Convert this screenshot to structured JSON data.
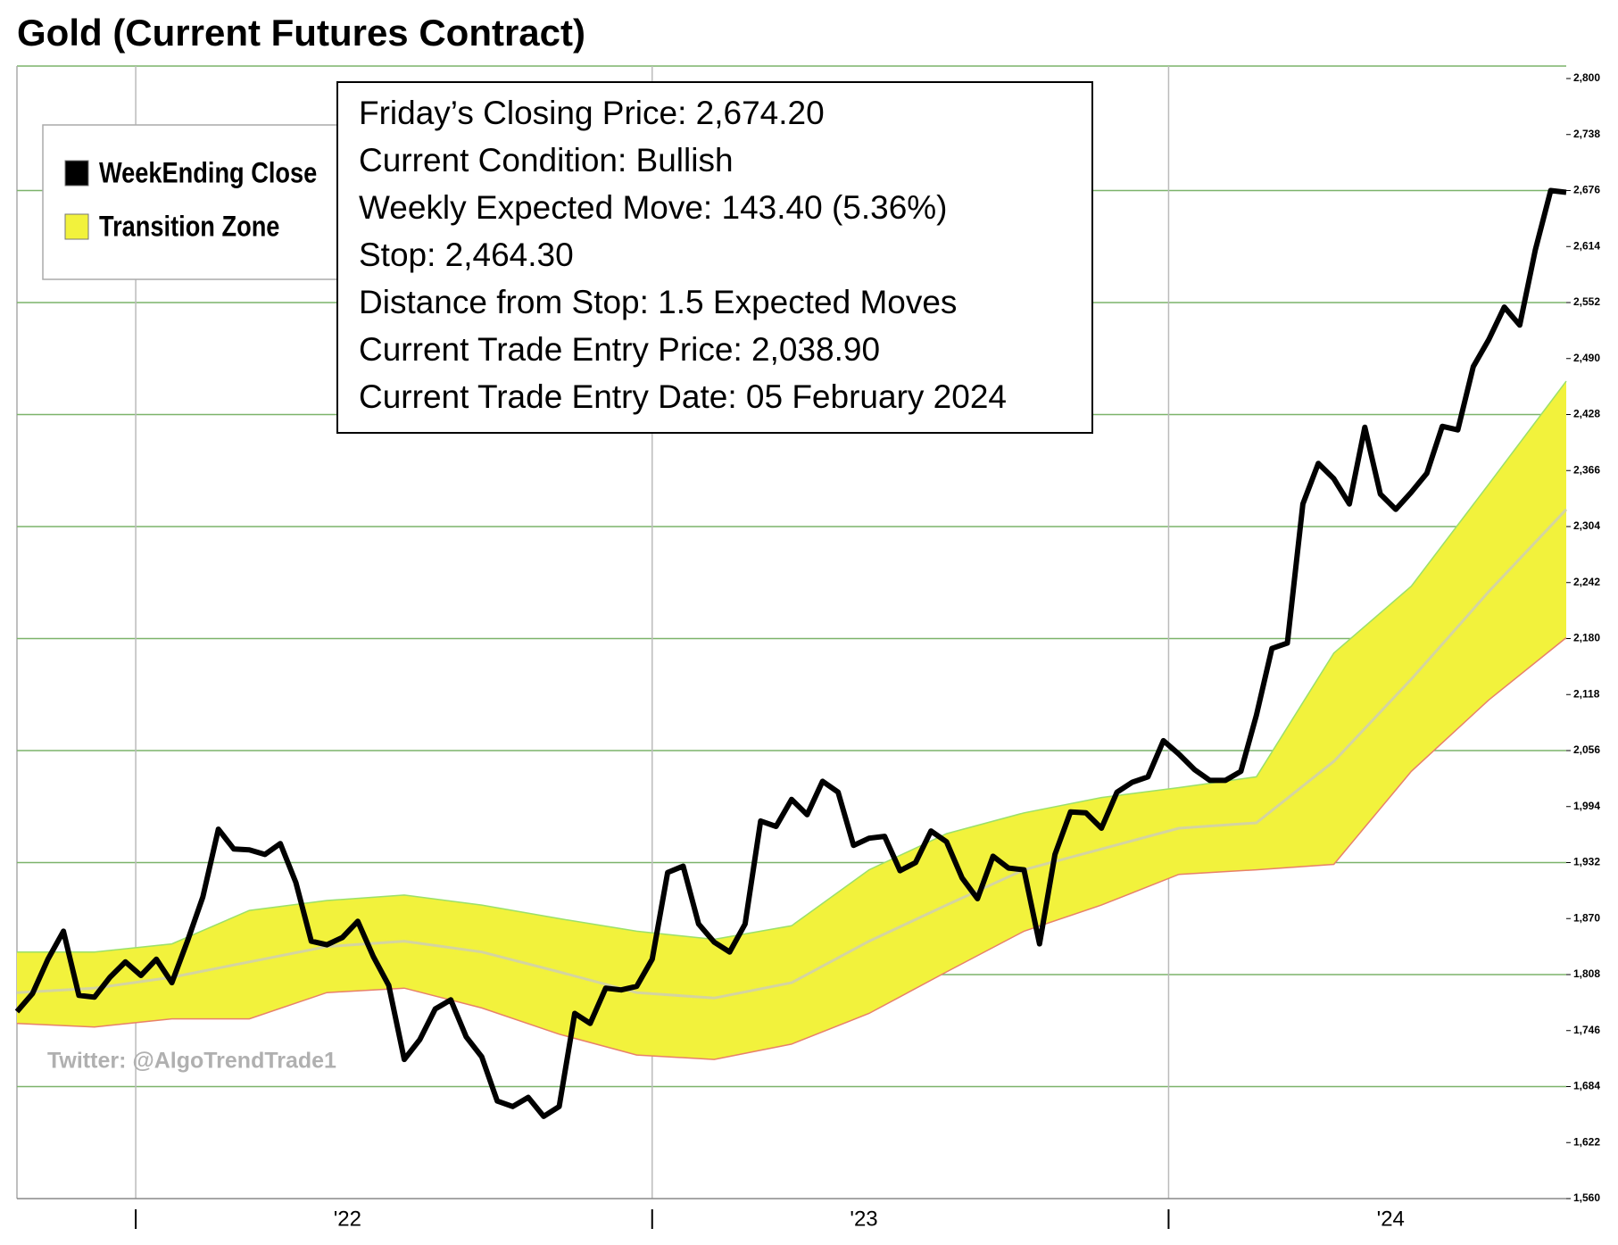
{
  "chart_data": {
    "type": "line",
    "title": "Gold (Current Futures Contract)",
    "annotations": [
      "Friday’s Closing Price: 2,674.20",
      "Current Condition: Bullish",
      "Weekly Expected Move: 143.40 (5.36%)",
      "Stop: 2,464.30",
      "Distance from Stop: 1.5 Expected Moves",
      "Current Trade Entry Price: 2,038.90",
      "Current Trade Entry Date: 05 February 2024"
    ],
    "watermark": "Twitter: @AlgoTrendTrade1",
    "series": [
      {
        "name": "WeekEnding Close",
        "color": "#000000",
        "x": [
          2021.77,
          2021.8,
          2021.83,
          2021.86,
          2021.89,
          2021.92,
          2021.95,
          2021.98,
          2022.01,
          2022.04,
          2022.07,
          2022.1,
          2022.13,
          2022.16,
          2022.19,
          2022.22,
          2022.25,
          2022.28,
          2022.31,
          2022.34,
          2022.37,
          2022.4,
          2022.43,
          2022.46,
          2022.49,
          2022.52,
          2022.55,
          2022.58,
          2022.61,
          2022.64,
          2022.67,
          2022.7,
          2022.73,
          2022.76,
          2022.79,
          2022.82,
          2022.85,
          2022.88,
          2022.91,
          2022.94,
          2022.97,
          2023,
          2023.03,
          2023.06,
          2023.09,
          2023.12,
          2023.15,
          2023.18,
          2023.21,
          2023.24,
          2023.27,
          2023.3,
          2023.33,
          2023.36,
          2023.39,
          2023.42,
          2023.45,
          2023.48,
          2023.51,
          2023.54,
          2023.57,
          2023.6,
          2023.63,
          2023.66,
          2023.69,
          2023.72,
          2023.75,
          2023.78,
          2023.81,
          2023.84,
          2023.87,
          2023.9,
          2023.93,
          2023.96,
          2023.99,
          2024.02,
          2024.05,
          2024.08,
          2024.11,
          2024.14,
          2024.17,
          2024.2,
          2024.23,
          2024.26,
          2024.29,
          2024.32,
          2024.35,
          2024.38,
          2024.41,
          2024.44,
          2024.47,
          2024.5,
          2024.53,
          2024.56,
          2024.59,
          2024.62,
          2024.65,
          2024.68,
          2024.71,
          2024.74,
          2024.77
        ],
        "values": [
          1767,
          1787,
          1825,
          1856,
          1785,
          1783,
          1805,
          1822,
          1807,
          1825,
          1799,
          1845,
          1894,
          1969,
          1947,
          1946,
          1941,
          1953,
          1910,
          1845,
          1841,
          1849,
          1867,
          1828,
          1796,
          1714,
          1736,
          1770,
          1780,
          1739,
          1717,
          1668,
          1662,
          1672,
          1651,
          1662,
          1765,
          1754,
          1793,
          1791,
          1795,
          1825,
          1921,
          1928,
          1864,
          1844,
          1833,
          1864,
          1978,
          1972,
          2002,
          1985,
          2022,
          2010,
          1951,
          1959,
          1961,
          1923,
          1932,
          1967,
          1955,
          1915,
          1892,
          1939,
          1926,
          1924,
          1842,
          1941,
          1988,
          1987,
          1970,
          2010,
          2021,
          2027,
          2067,
          2052,
          2035,
          2023,
          2023,
          2033,
          2095,
          2169,
          2175,
          2329,
          2374,
          2357,
          2329,
          2414,
          2340,
          2323,
          2342,
          2363,
          2415,
          2411,
          2481,
          2511,
          2547,
          2527,
          2610,
          2676,
          2674
        ]
      },
      {
        "name": "Transition Zone",
        "color": "#f2f23c",
        "upper_color": "#9be06a",
        "lower_color": "#e8806a",
        "middle_color": "#d4d4a0",
        "x": [
          2021.77,
          2021.92,
          2022.07,
          2022.22,
          2022.37,
          2022.52,
          2022.67,
          2022.82,
          2022.97,
          2023.12,
          2023.27,
          2023.42,
          2023.57,
          2023.72,
          2023.87,
          2024.02,
          2024.17,
          2024.32,
          2024.47,
          2024.62,
          2024.77
        ],
        "upper": [
          1833,
          1833,
          1842,
          1879,
          1890,
          1896,
          1885,
          1870,
          1856,
          1847,
          1862,
          1924,
          1964,
          1987,
          2004,
          2015,
          2027,
          2164,
          2238,
          2351,
          2465
        ],
        "middle": [
          1788,
          1793,
          1805,
          1822,
          1839,
          1845,
          1833,
          1811,
          1788,
          1782,
          1799,
          1845,
          1885,
          1924,
          1947,
          1970,
          1976,
          2044,
          2135,
          2232,
          2323
        ],
        "lower": [
          1754,
          1750,
          1759,
          1759,
          1788,
          1793,
          1771,
          1742,
          1719,
          1714,
          1731,
          1765,
          1811,
          1856,
          1885,
          1919,
          1924,
          1930,
          2033,
          2112,
          2181
        ]
      }
    ],
    "xlim": [
      2021.77,
      2024.77
    ],
    "xticks": [
      {
        "value": 2022.41,
        "label": "'22"
      },
      {
        "value": 2023.41,
        "label": "'23"
      },
      {
        "value": 2024.43,
        "label": "'24"
      }
    ],
    "xgrid": [
      2022,
      2023,
      2024
    ],
    "ylim": [
      1560,
      2800
    ],
    "yticks": [
      {
        "value": 1560,
        "label": "1,560"
      },
      {
        "value": 1622,
        "label": "1,622"
      },
      {
        "value": 1684,
        "label": "1,684"
      },
      {
        "value": 1746,
        "label": "1,746"
      },
      {
        "value": 1808,
        "label": "1,808"
      },
      {
        "value": 1870,
        "label": "1,870"
      },
      {
        "value": 1932,
        "label": "1,932"
      },
      {
        "value": 1994,
        "label": "1,994"
      },
      {
        "value": 2056,
        "label": "2,056"
      },
      {
        "value": 2118,
        "label": "2,118"
      },
      {
        "value": 2180,
        "label": "2,180"
      },
      {
        "value": 2242,
        "label": "2,242"
      },
      {
        "value": 2304,
        "label": "2,304"
      },
      {
        "value": 2366,
        "label": "2,366"
      },
      {
        "value": 2428,
        "label": "2,428"
      },
      {
        "value": 2490,
        "label": "2,490"
      },
      {
        "value": 2552,
        "label": "2,552"
      },
      {
        "value": 2614,
        "label": "2,614"
      },
      {
        "value": 2676,
        "label": "2,676"
      },
      {
        "value": 2738,
        "label": "2,738"
      },
      {
        "value": 2800,
        "label": "2,800"
      }
    ],
    "ygrid": [
      1684,
      1808,
      1932,
      2056,
      2180,
      2304,
      2428,
      2552,
      2676
    ],
    "grid_color": "#7cb36a",
    "xgrid_color": "#bbbbbb"
  }
}
